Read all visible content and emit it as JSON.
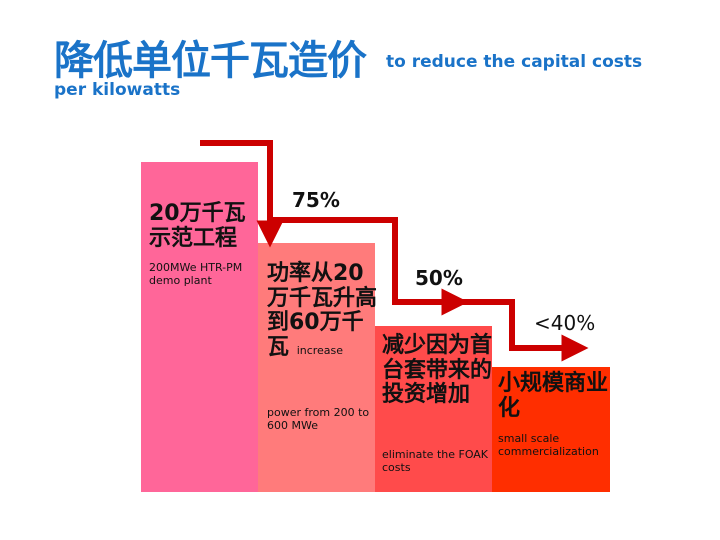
{
  "title": {
    "cn": "降低单位千瓦造价",
    "en_line1": "to reduce the capital costs",
    "en_line2": "per kilowatts"
  },
  "steps": [
    {
      "cn": "20万千瓦示范工程",
      "en": "200MWe HTR-PM demo plant",
      "color": "#ff6699"
    },
    {
      "cn": "功率从20万千瓦升高到60万千瓦",
      "cn_inline_en": "increase",
      "en": "power from 200 to 600 MWe",
      "color": "#ff7b7b"
    },
    {
      "cn": "减少因为首台套带来的投资增加",
      "en": "eliminate the FOAK costs",
      "color": "#ff4b4b"
    },
    {
      "cn": "小规模商业化",
      "en": "small scale commercialization",
      "color": "#ff2e00"
    }
  ],
  "percentages": [
    "75%",
    "50%",
    "<40%"
  ],
  "arrow_color": "#cc0000"
}
